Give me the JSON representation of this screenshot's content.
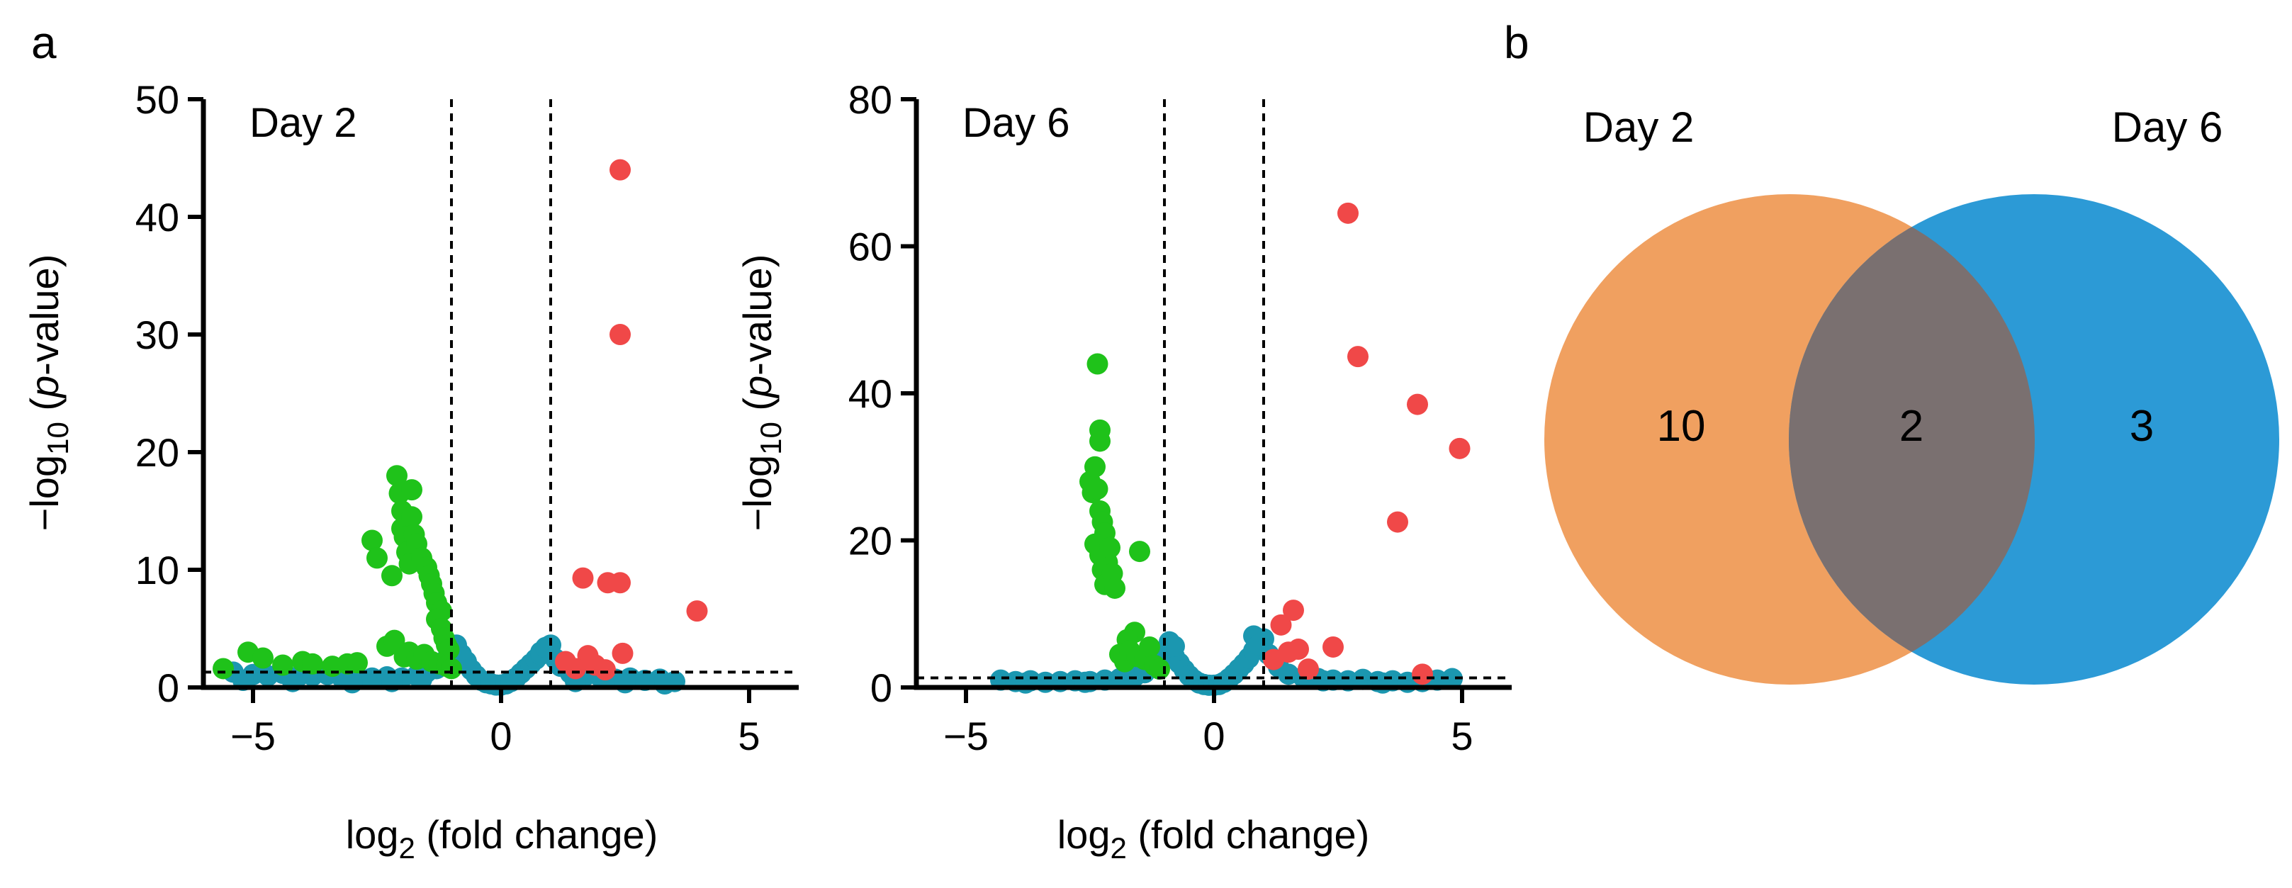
{
  "panels": {
    "a": "a",
    "b": "b"
  },
  "colors": {
    "down": "#1fc21a",
    "up": "#f04848",
    "ns": "#1b97b0",
    "venn_left": "#f0a060",
    "venn_right": "#2c9ad6",
    "venn_overlap": "#7a7070"
  },
  "chart_data": [
    {
      "type": "scatter",
      "title": "Day 2",
      "xlabel": "log2 (fold change)",
      "xlabel_main": "log",
      "xlabel_sub": "2",
      "xlabel_rest": " (fold change)",
      "ylabel": "−log10 (p-value)",
      "ylabel_main": "−log",
      "ylabel_sub": "10",
      "ylabel_open": " (",
      "ylabel_italic": "p",
      "ylabel_rest": "-value)",
      "xlim": [
        -6,
        6
      ],
      "ylim": [
        0,
        50
      ],
      "xticks": [
        -5,
        0,
        5
      ],
      "xtick_labels": [
        "−5",
        "0",
        "5"
      ],
      "yticks": [
        0,
        10,
        20,
        30,
        40,
        50
      ],
      "ytick_labels": [
        "0",
        "10",
        "20",
        "30",
        "40",
        "50"
      ],
      "fc_threshold": [
        -1,
        1
      ],
      "p_threshold": 1.3,
      "series": [
        {
          "name": "down",
          "x": [
            -5.6,
            -5.1,
            -4.8,
            -4.4,
            -4.0,
            -3.8,
            -3.4,
            -3.1,
            -2.9,
            -2.6,
            -2.5,
            -2.2,
            -2.1,
            -2.05,
            -2.0,
            -2.0,
            -1.95,
            -1.9,
            -1.85,
            -1.8,
            -1.8,
            -1.75,
            -1.7,
            -1.6,
            -1.5,
            -1.45,
            -1.4,
            -1.35,
            -1.3,
            -1.2,
            -1.3,
            -1.2,
            -1.15,
            -1.1,
            -1.05,
            -2.3,
            -2.15,
            -1.95,
            -1.85,
            -1.7,
            -1.55,
            -1.4,
            -1.25,
            -1.1,
            -1.0
          ],
          "y": [
            1.6,
            3.0,
            2.5,
            1.9,
            2.2,
            2.0,
            1.8,
            2.0,
            2.1,
            12.5,
            11.0,
            9.5,
            18.0,
            16.5,
            15.0,
            13.5,
            12.8,
            11.5,
            10.5,
            16.8,
            14.5,
            13.0,
            12.2,
            11.0,
            10.2,
            9.5,
            8.8,
            8.0,
            7.2,
            6.5,
            5.8,
            5.0,
            4.2,
            3.6,
            3.2,
            3.5,
            4.0,
            2.6,
            3.0,
            2.4,
            2.8,
            2.2,
            2.0,
            1.8,
            1.6
          ]
        },
        {
          "name": "up",
          "x": [
            2.4,
            2.4,
            1.65,
            2.15,
            2.4,
            3.95,
            1.75,
            2.45,
            1.3,
            1.5,
            1.9,
            2.1
          ],
          "y": [
            44.0,
            30.0,
            9.3,
            8.9,
            8.9,
            6.5,
            2.7,
            2.9,
            2.2,
            1.6,
            1.9,
            1.5
          ]
        },
        {
          "name": "ns",
          "x": [
            -5.4,
            -5.0,
            -4.7,
            -4.4,
            -4.1,
            -3.8,
            -3.5,
            -3.2,
            -2.9,
            -2.6,
            -2.3,
            -2.0,
            -1.7,
            -1.5,
            -1.3,
            -1.2,
            -1.1,
            -1.0,
            -0.9,
            -0.8,
            -0.7,
            -0.6,
            -0.5,
            -0.4,
            -0.3,
            -0.2,
            -0.1,
            0.0,
            0.1,
            0.2,
            0.3,
            0.4,
            0.5,
            0.6,
            0.7,
            0.8,
            0.9,
            1.0,
            1.1,
            1.2,
            1.4,
            1.7,
            2.0,
            2.3,
            2.6,
            2.9,
            3.2,
            3.5,
            -0.9,
            -0.8,
            0.8,
            0.9,
            -5.2,
            -4.2,
            -3.0,
            -2.2,
            -1.6,
            1.5,
            2.5,
            3.3
          ],
          "y": [
            1.3,
            1.1,
            1.0,
            1.2,
            0.9,
            1.0,
            1.1,
            0.8,
            0.9,
            0.8,
            0.9,
            0.8,
            1.0,
            1.3,
            1.6,
            2.0,
            2.4,
            3.0,
            3.6,
            2.8,
            2.2,
            1.5,
            1.0,
            0.6,
            0.4,
            0.3,
            0.2,
            0.2,
            0.3,
            0.5,
            0.8,
            1.2,
            1.6,
            2.0,
            2.4,
            2.8,
            3.2,
            3.6,
            2.4,
            1.8,
            1.2,
            1.0,
            0.9,
            0.7,
            0.8,
            0.6,
            0.7,
            0.5,
            3.3,
            2.5,
            3.0,
            3.4,
            0.6,
            0.5,
            0.4,
            0.5,
            0.7,
            0.5,
            0.4,
            0.3
          ]
        }
      ]
    },
    {
      "type": "scatter",
      "title": "Day 6",
      "xlabel": "log2 (fold change)",
      "xlabel_main": "log",
      "xlabel_sub": "2",
      "xlabel_rest": " (fold change)",
      "ylabel": "−log10 (p-value)",
      "ylabel_main": "−log",
      "ylabel_sub": "10",
      "ylabel_open": " (",
      "ylabel_italic": "p",
      "ylabel_rest": "-value)",
      "xlim": [
        -6,
        6
      ],
      "ylim": [
        0,
        80
      ],
      "xticks": [
        -5,
        0,
        5
      ],
      "xtick_labels": [
        "−5",
        "0",
        "5"
      ],
      "yticks": [
        0,
        20,
        40,
        60,
        80
      ],
      "ytick_labels": [
        "0",
        "20",
        "40",
        "60",
        "80"
      ],
      "fc_threshold": [
        -1,
        1
      ],
      "p_threshold": 1.3,
      "series": [
        {
          "name": "down",
          "x": [
            -2.35,
            -2.3,
            -2.3,
            -2.5,
            -2.45,
            -2.4,
            -2.35,
            -2.3,
            -2.25,
            -2.2,
            -2.4,
            -2.3,
            -2.25,
            -2.2,
            -2.15,
            -2.1,
            -2.05,
            -2.0,
            -1.5,
            -1.6,
            -1.75,
            -1.9,
            -1.8,
            -1.7,
            -1.55,
            -1.4,
            -1.3,
            -1.2,
            -1.1
          ],
          "y": [
            44.0,
            35.0,
            33.5,
            28.0,
            26.5,
            30.0,
            27.0,
            24.0,
            22.5,
            21.0,
            19.5,
            18.0,
            16.0,
            14.0,
            17.0,
            19.0,
            15.5,
            13.5,
            18.5,
            7.5,
            6.5,
            4.5,
            3.5,
            5.0,
            4.2,
            3.8,
            5.5,
            3.0,
            2.5
          ]
        },
        {
          "name": "up",
          "x": [
            2.7,
            2.9,
            4.1,
            4.95,
            3.7,
            1.6,
            1.35,
            2.4,
            1.5,
            1.7,
            1.2,
            1.9,
            4.2
          ],
          "y": [
            64.5,
            45.0,
            38.5,
            32.5,
            22.5,
            10.5,
            8.5,
            5.5,
            4.8,
            5.2,
            3.8,
            2.5,
            1.8
          ]
        },
        {
          "name": "ns",
          "x": [
            -4.3,
            -4.0,
            -3.7,
            -3.4,
            -3.1,
            -2.8,
            -2.5,
            -2.2,
            -1.9,
            -1.6,
            -1.4,
            -1.2,
            -1.1,
            -1.0,
            -0.9,
            -0.8,
            -0.7,
            -0.6,
            -0.5,
            -0.4,
            -0.3,
            -0.2,
            -0.1,
            0.0,
            0.1,
            0.2,
            0.3,
            0.4,
            0.5,
            0.6,
            0.7,
            0.8,
            0.9,
            1.0,
            1.1,
            1.3,
            1.5,
            1.8,
            2.1,
            2.4,
            2.7,
            3.0,
            3.3,
            3.6,
            3.9,
            4.2,
            4.5,
            4.8,
            -0.9,
            -0.8,
            0.8,
            0.9,
            -3.8,
            -2.6,
            2.2,
            3.4
          ],
          "y": [
            1.0,
            0.8,
            0.9,
            0.7,
            0.8,
            0.9,
            0.8,
            1.0,
            1.2,
            1.5,
            2.0,
            2.8,
            3.4,
            4.0,
            5.0,
            4.2,
            3.3,
            2.4,
            1.6,
            1.0,
            0.6,
            0.4,
            0.3,
            0.3,
            0.4,
            0.7,
            1.2,
            1.8,
            2.5,
            3.2,
            4.0,
            5.0,
            6.0,
            6.6,
            4.5,
            2.8,
            1.8,
            1.4,
            1.2,
            1.0,
            0.9,
            1.1,
            0.8,
            0.9,
            0.7,
            0.8,
            1.0,
            1.2,
            6.2,
            5.6,
            7.0,
            5.8,
            0.6,
            0.7,
            0.9,
            0.6
          ]
        }
      ]
    },
    {
      "type": "venn",
      "sets": [
        "Day 2",
        "Day 6"
      ],
      "counts": {
        "only_left": "10",
        "both": "2",
        "only_right": "3"
      }
    }
  ]
}
